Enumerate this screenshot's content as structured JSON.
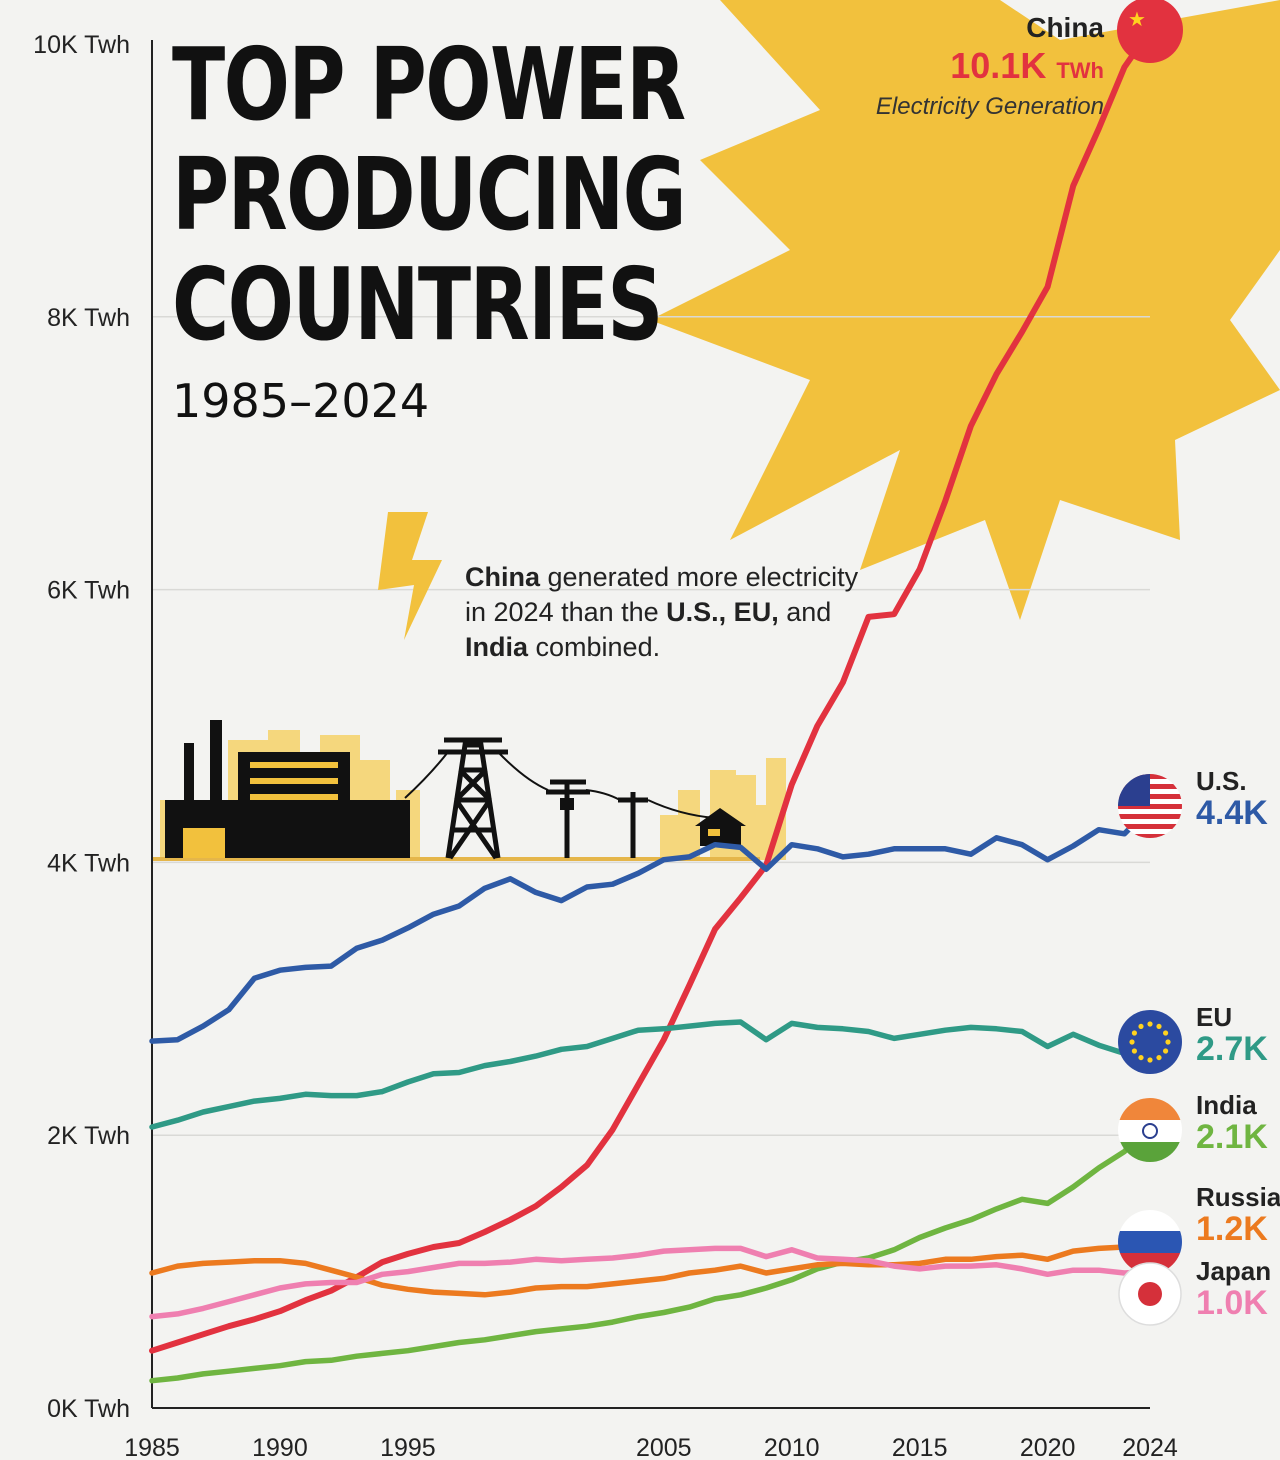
{
  "header": {
    "title": "TOP POWER\nPRODUCING\nCOUNTRIES",
    "subtitle": "1985–2024"
  },
  "annotation": {
    "parts": [
      {
        "text": "China",
        "bold": true
      },
      {
        "text": " generated more electricity in 2024 than the ",
        "bold": false
      },
      {
        "text": "U.S., EU,",
        "bold": true
      },
      {
        "text": " and ",
        "bold": false
      },
      {
        "text": "India",
        "bold": true
      },
      {
        "text": " combined.",
        "bold": false
      }
    ]
  },
  "china_callout": {
    "name": "China",
    "value": "10.1K",
    "unit": "TWh",
    "caption": "Electricity Generation"
  },
  "end_labels": [
    {
      "name": "U.S.",
      "value": "4.4K",
      "color": "#2e5aa6"
    },
    {
      "name": "EU",
      "value": "2.7K",
      "color": "#2f9a86"
    },
    {
      "name": "India",
      "value": "2.1K",
      "color": "#6fb541"
    },
    {
      "name": "Russia",
      "value": "1.2K",
      "color": "#ec7a1f"
    },
    {
      "name": "Japan",
      "value": "1.0K",
      "color": "#ef7fb0"
    }
  ],
  "colors": {
    "sun": "#f2c13d",
    "skyline": "#f5d77d",
    "infrastructure": "#111111",
    "china": "#e2323f"
  },
  "icons": [
    "sun-rays",
    "lightning-bolt-icon",
    "power-plant-icon",
    "transmission-tower-icon",
    "utility-pole-icon",
    "house-icon",
    "china-flag-icon",
    "us-flag-icon",
    "eu-flag-icon",
    "india-flag-icon",
    "russia-flag-icon",
    "japan-flag-icon"
  ],
  "chart_data": {
    "type": "line",
    "title": "TOP POWER PRODUCING COUNTRIES",
    "subtitle": "1985–2024",
    "xlim": [
      1985,
      2024
    ],
    "ylim": [
      0,
      10000
    ],
    "grid": true,
    "x_ticks": [
      "1985",
      "1990",
      "1995",
      "2005",
      "2010",
      "2015",
      "2020",
      "2024"
    ],
    "y_ticks": [
      "0K Twh",
      "2K Twh",
      "4K Twh",
      "6K Twh",
      "8K Twh",
      "10K Twh"
    ],
    "x": [
      1985,
      1986,
      1987,
      1988,
      1989,
      1990,
      1991,
      1992,
      1993,
      1994,
      1995,
      1996,
      1997,
      1998,
      1999,
      2000,
      2001,
      2002,
      2003,
      2004,
      2005,
      2006,
      2007,
      2008,
      2009,
      2010,
      2011,
      2012,
      2013,
      2014,
      2015,
      2016,
      2017,
      2018,
      2019,
      2020,
      2021,
      2022,
      2023,
      2024
    ],
    "series": [
      {
        "name": "China",
        "color": "#e2323f",
        "values": [
          420,
          480,
          540,
          600,
          650,
          710,
          790,
          860,
          960,
          1070,
          1130,
          1180,
          1210,
          1290,
          1380,
          1480,
          1620,
          1780,
          2040,
          2370,
          2700,
          3100,
          3510,
          3740,
          3980,
          4570,
          5000,
          5320,
          5800,
          5820,
          6150,
          6650,
          7200,
          7580,
          7890,
          8220,
          8960,
          9380,
          9830,
          10100
        ]
      },
      {
        "name": "U.S.",
        "color": "#2e5aa6",
        "values": [
          2690,
          2700,
          2800,
          2920,
          3150,
          3210,
          3230,
          3240,
          3370,
          3430,
          3520,
          3620,
          3680,
          3810,
          3880,
          3780,
          3720,
          3820,
          3840,
          3920,
          4020,
          4040,
          4130,
          4110,
          3950,
          4130,
          4100,
          4040,
          4060,
          4100,
          4100,
          4100,
          4060,
          4180,
          4130,
          4020,
          4120,
          4240,
          4210,
          4400
        ]
      },
      {
        "name": "EU",
        "color": "#2f9a86",
        "values": [
          2060,
          2110,
          2170,
          2210,
          2250,
          2270,
          2300,
          2290,
          2290,
          2320,
          2390,
          2450,
          2460,
          2510,
          2540,
          2580,
          2630,
          2650,
          2710,
          2770,
          2780,
          2800,
          2820,
          2830,
          2700,
          2820,
          2790,
          2780,
          2760,
          2710,
          2740,
          2770,
          2790,
          2780,
          2760,
          2650,
          2740,
          2660,
          2600,
          2700
        ]
      },
      {
        "name": "India",
        "color": "#6fb541",
        "values": [
          200,
          220,
          250,
          270,
          290,
          310,
          340,
          350,
          380,
          400,
          420,
          450,
          480,
          500,
          530,
          560,
          580,
          600,
          630,
          670,
          700,
          740,
          800,
          830,
          880,
          940,
          1020,
          1070,
          1100,
          1160,
          1250,
          1320,
          1380,
          1460,
          1530,
          1500,
          1620,
          1760,
          1880,
          2100
        ]
      },
      {
        "name": "Russia",
        "color": "#ec7a1f",
        "values": [
          990,
          1040,
          1060,
          1070,
          1080,
          1080,
          1060,
          1010,
          960,
          900,
          870,
          850,
          840,
          830,
          850,
          880,
          890,
          890,
          910,
          930,
          950,
          990,
          1010,
          1040,
          990,
          1020,
          1050,
          1060,
          1050,
          1050,
          1060,
          1090,
          1090,
          1110,
          1120,
          1090,
          1150,
          1170,
          1180,
          1200
        ]
      },
      {
        "name": "Japan",
        "color": "#ef7fb0",
        "values": [
          670,
          690,
          730,
          780,
          830,
          880,
          910,
          920,
          920,
          980,
          1000,
          1030,
          1060,
          1060,
          1070,
          1090,
          1080,
          1090,
          1100,
          1120,
          1150,
          1160,
          1170,
          1170,
          1110,
          1160,
          1100,
          1090,
          1080,
          1040,
          1020,
          1040,
          1040,
          1050,
          1020,
          980,
          1010,
          1010,
          990,
          1000
        ]
      }
    ]
  }
}
